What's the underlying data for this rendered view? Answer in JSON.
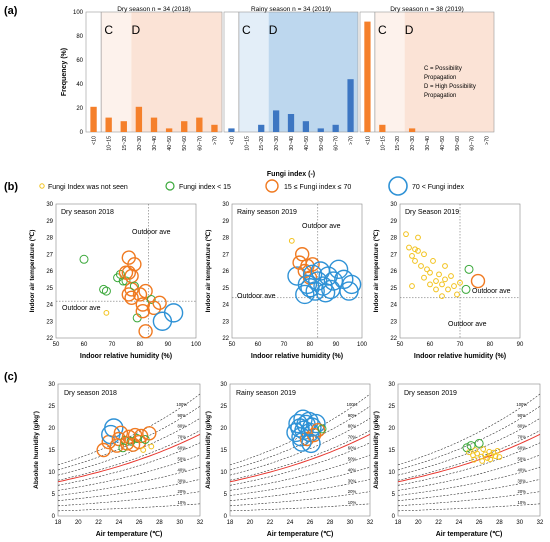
{
  "panel_labels": [
    "(a)",
    "(b)",
    "(c)"
  ],
  "colors": {
    "bar": "#f5802b",
    "dry_shade": "#fbe3d6",
    "dry_shade_light": "#fdf2ec",
    "rainy_shade": "#bdd7ee",
    "rainy_shade_light": "#e3eef8",
    "rainy_bar": "#3d76c2",
    "small_marker": "#f2c21c",
    "lt15_marker": "#3aa83a",
    "mid_marker": "#f07a21",
    "high_marker": "#2f92d6",
    "sat_curve": "#e8372f"
  },
  "legend": {
    "not_seen": "Fungi Index was not seen",
    "lt15": "Fungi index < 15",
    "mid": "15 ≤ Fungi index ≤ 70",
    "gt70": "70 < Fungi index"
  },
  "annotation": {
    "c_label": "C",
    "d_label": "D",
    "note_lines": [
      "C = Possibility",
      "Propagation",
      "D = High Possibility",
      "Propagation"
    ]
  },
  "chart_data": [
    {
      "type": "bar",
      "id": "hist_dry_2018",
      "title": "Dry season n = 34 (2018)",
      "categories": [
        "<10",
        "10~15",
        "15~20",
        "20~30",
        "30~40",
        "40~50",
        "50~60",
        "60~70",
        ">70"
      ],
      "values": [
        21,
        12,
        9,
        21,
        12,
        3,
        9,
        12,
        6
      ],
      "ylabel": "Frequency (%)",
      "ylim": [
        0,
        100
      ],
      "yticks": [
        0,
        20,
        40,
        60,
        80,
        100
      ]
    },
    {
      "type": "bar",
      "id": "hist_rainy_2019",
      "title": "Rainy season n = 34 (2019)",
      "categories": [
        "<10",
        "10~15",
        "15~20",
        "20~30",
        "30~40",
        "40~50",
        "50~60",
        "60~70",
        ">70"
      ],
      "values": [
        3,
        0,
        6,
        18,
        15,
        9,
        3,
        6,
        44
      ],
      "xlabel": "Fungi index (-)",
      "ylim": [
        0,
        100
      ]
    },
    {
      "type": "bar",
      "id": "hist_dry_2019",
      "title": "Dry season n = 38 (2019)",
      "categories": [
        "<10",
        "10~15",
        "15~20",
        "20~30",
        "30~40",
        "40~50",
        "50~60",
        "60~70",
        ">70"
      ],
      "values": [
        92,
        6,
        0,
        3,
        0,
        0,
        0,
        0,
        0
      ],
      "ylim": [
        0,
        100
      ]
    },
    {
      "type": "scatter",
      "id": "scatter_dry_2018",
      "title": "Dry season 2018",
      "xlabel": "Indoor relative humidity (%)",
      "ylabel": "Indoor air temperature (℃)",
      "xlim": [
        50,
        100
      ],
      "ylim": [
        22,
        30
      ],
      "xticks": [
        50,
        60,
        70,
        80,
        90,
        100
      ],
      "yticks": [
        22,
        23,
        24,
        25,
        26,
        27,
        28,
        29,
        30
      ],
      "outdoor_ave": {
        "rh": 83,
        "t": 24.2
      },
      "annotation_text": "Outdoor ave",
      "points": [
        {
          "x": 60,
          "y": 26.7,
          "s": 2
        },
        {
          "x": 67,
          "y": 24.9,
          "s": 2
        },
        {
          "x": 68,
          "y": 24.8,
          "s": 2
        },
        {
          "x": 68,
          "y": 23.5,
          "s": 1
        },
        {
          "x": 72,
          "y": 25.6,
          "s": 2
        },
        {
          "x": 73,
          "y": 25.8,
          "s": 2
        },
        {
          "x": 74,
          "y": 25.4,
          "s": 2
        },
        {
          "x": 75,
          "y": 25.9,
          "s": 3
        },
        {
          "x": 75,
          "y": 25.4,
          "s": 2
        },
        {
          "x": 76,
          "y": 26.8,
          "s": 3
        },
        {
          "x": 76,
          "y": 25.9,
          "s": 3
        },
        {
          "x": 76,
          "y": 24.6,
          "s": 3
        },
        {
          "x": 77,
          "y": 25.7,
          "s": 3
        },
        {
          "x": 77,
          "y": 24.9,
          "s": 3
        },
        {
          "x": 77,
          "y": 24.4,
          "s": 3
        },
        {
          "x": 78,
          "y": 26.4,
          "s": 3
        },
        {
          "x": 78,
          "y": 25.1,
          "s": 2
        },
        {
          "x": 79,
          "y": 23.2,
          "s": 2
        },
        {
          "x": 80,
          "y": 24.6,
          "s": 3
        },
        {
          "x": 81,
          "y": 24.0,
          "s": 3
        },
        {
          "x": 81,
          "y": 23.6,
          "s": 3
        },
        {
          "x": 82,
          "y": 24.8,
          "s": 3
        },
        {
          "x": 82,
          "y": 22.4,
          "s": 3
        },
        {
          "x": 84,
          "y": 24.3,
          "s": 2
        },
        {
          "x": 85,
          "y": 23.8,
          "s": 3
        },
        {
          "x": 87,
          "y": 24.1,
          "s": 3
        },
        {
          "x": 88,
          "y": 23.0,
          "s": 4
        },
        {
          "x": 92,
          "y": 23.5,
          "s": 4
        }
      ]
    },
    {
      "type": "scatter",
      "id": "scatter_rainy_2019",
      "title": "Rainy season 2019",
      "xlabel": "Indoor relative humidity (%)",
      "ylabel": "Indoor air temperature (℃)",
      "xlim": [
        50,
        100
      ],
      "ylim": [
        22,
        30
      ],
      "xticks": [
        50,
        60,
        70,
        80,
        90,
        100
      ],
      "yticks": [
        22,
        23,
        24,
        25,
        26,
        27,
        28,
        29,
        30
      ],
      "outdoor_ave": {
        "rh": 83,
        "t": 24.4
      },
      "annotation_text": "Outdoor ave",
      "points": [
        {
          "x": 73,
          "y": 27.8,
          "s": 1
        },
        {
          "x": 75,
          "y": 25.7,
          "s": 4
        },
        {
          "x": 76,
          "y": 26.5,
          "s": 3
        },
        {
          "x": 77,
          "y": 27.0,
          "s": 3
        },
        {
          "x": 78,
          "y": 24.6,
          "s": 4
        },
        {
          "x": 78,
          "y": 26.0,
          "s": 3
        },
        {
          "x": 79,
          "y": 26.3,
          "s": 3
        },
        {
          "x": 79,
          "y": 25.2,
          "s": 4
        },
        {
          "x": 80,
          "y": 25.6,
          "s": 3
        },
        {
          "x": 80,
          "y": 25.0,
          "s": 4
        },
        {
          "x": 81,
          "y": 26.4,
          "s": 3
        },
        {
          "x": 81,
          "y": 25.8,
          "s": 4
        },
        {
          "x": 82,
          "y": 24.8,
          "s": 4
        },
        {
          "x": 83,
          "y": 25.4,
          "s": 4
        },
        {
          "x": 84,
          "y": 26.0,
          "s": 4
        },
        {
          "x": 85,
          "y": 25.1,
          "s": 4
        },
        {
          "x": 86,
          "y": 24.7,
          "s": 4
        },
        {
          "x": 87,
          "y": 25.7,
          "s": 4
        },
        {
          "x": 88,
          "y": 24.9,
          "s": 4
        },
        {
          "x": 89,
          "y": 25.4,
          "s": 4
        },
        {
          "x": 91,
          "y": 26.1,
          "s": 4
        },
        {
          "x": 93,
          "y": 25.5,
          "s": 4
        },
        {
          "x": 95,
          "y": 24.8,
          "s": 4
        },
        {
          "x": 96,
          "y": 25.2,
          "s": 4
        }
      ]
    },
    {
      "type": "scatter",
      "id": "scatter_dry_2019",
      "title": "Dry Season 2019",
      "xlabel": "Indoor relative humidity (%)",
      "ylabel": "Indoor air temperature (℃)",
      "xlim": [
        50,
        90
      ],
      "ylim": [
        22,
        30
      ],
      "xticks": [
        50,
        60,
        70,
        80,
        90
      ],
      "yticks": [
        22,
        23,
        24,
        25,
        26,
        27,
        28,
        29,
        30
      ],
      "outdoor_ave": {
        "rh": 70,
        "t": 24.4
      },
      "annotation_text": "Outdoor ave",
      "points": [
        {
          "x": 52,
          "y": 28.2,
          "s": 1
        },
        {
          "x": 53,
          "y": 27.4,
          "s": 1
        },
        {
          "x": 54,
          "y": 26.9,
          "s": 1
        },
        {
          "x": 55,
          "y": 27.3,
          "s": 1
        },
        {
          "x": 55,
          "y": 26.6,
          "s": 1
        },
        {
          "x": 56,
          "y": 28.0,
          "s": 1
        },
        {
          "x": 56,
          "y": 27.2,
          "s": 1
        },
        {
          "x": 57,
          "y": 26.3,
          "s": 1
        },
        {
          "x": 58,
          "y": 27.0,
          "s": 1
        },
        {
          "x": 58,
          "y": 25.6,
          "s": 1
        },
        {
          "x": 59,
          "y": 26.1,
          "s": 1
        },
        {
          "x": 60,
          "y": 25.9,
          "s": 1
        },
        {
          "x": 60,
          "y": 25.2,
          "s": 1
        },
        {
          "x": 61,
          "y": 26.6,
          "s": 1
        },
        {
          "x": 62,
          "y": 25.4,
          "s": 1
        },
        {
          "x": 62,
          "y": 24.9,
          "s": 1
        },
        {
          "x": 63,
          "y": 25.8,
          "s": 1
        },
        {
          "x": 64,
          "y": 25.2,
          "s": 1
        },
        {
          "x": 64,
          "y": 24.5,
          "s": 1
        },
        {
          "x": 65,
          "y": 26.3,
          "s": 1
        },
        {
          "x": 65,
          "y": 25.5,
          "s": 1
        },
        {
          "x": 66,
          "y": 24.9,
          "s": 1
        },
        {
          "x": 67,
          "y": 25.7,
          "s": 1
        },
        {
          "x": 68,
          "y": 25.1,
          "s": 1
        },
        {
          "x": 69,
          "y": 24.6,
          "s": 1
        },
        {
          "x": 70,
          "y": 25.3,
          "s": 1
        },
        {
          "x": 72,
          "y": 24.9,
          "s": 2
        },
        {
          "x": 73,
          "y": 26.1,
          "s": 2
        },
        {
          "x": 76,
          "y": 25.4,
          "s": 3
        },
        {
          "x": 54,
          "y": 25.1,
          "s": 1
        }
      ]
    },
    {
      "type": "scatter",
      "id": "psychro_dry_2018",
      "title": "Dry season 2018",
      "xlabel": "Air temperature (℃)",
      "ylabel": "Absolute humidity (g/kg')",
      "xlim": [
        18,
        32
      ],
      "ylim": [
        0,
        30
      ],
      "xticks": [
        18,
        20,
        22,
        24,
        26,
        28,
        30,
        32
      ],
      "yticks": [
        0,
        5,
        10,
        15,
        20,
        25,
        30
      ],
      "rh_labels": [
        "100%",
        "90%",
        "80%",
        "70%",
        "60%",
        "50%",
        "40%",
        "30%",
        "20%",
        "10%"
      ],
      "points": [
        {
          "x": 22.5,
          "y": 15.0,
          "s": 3
        },
        {
          "x": 23.0,
          "y": 16.8,
          "s": 3
        },
        {
          "x": 23.2,
          "y": 18.5,
          "s": 4
        },
        {
          "x": 23.5,
          "y": 20.0,
          "s": 4
        },
        {
          "x": 23.8,
          "y": 16.0,
          "s": 3
        },
        {
          "x": 24.0,
          "y": 17.5,
          "s": 3
        },
        {
          "x": 24.2,
          "y": 18.9,
          "s": 3
        },
        {
          "x": 24.4,
          "y": 15.5,
          "s": 2
        },
        {
          "x": 24.6,
          "y": 17.2,
          "s": 2
        },
        {
          "x": 24.8,
          "y": 16.5,
          "s": 3
        },
        {
          "x": 25.0,
          "y": 18.0,
          "s": 3
        },
        {
          "x": 25.2,
          "y": 17.0,
          "s": 2
        },
        {
          "x": 25.4,
          "y": 16.2,
          "s": 3
        },
        {
          "x": 25.6,
          "y": 18.4,
          "s": 3
        },
        {
          "x": 25.8,
          "y": 17.6,
          "s": 2
        },
        {
          "x": 26.0,
          "y": 16.8,
          "s": 3
        },
        {
          "x": 26.2,
          "y": 18.2,
          "s": 3
        },
        {
          "x": 26.4,
          "y": 15.0,
          "s": 1
        },
        {
          "x": 26.6,
          "y": 17.4,
          "s": 2
        },
        {
          "x": 27.0,
          "y": 18.8,
          "s": 3
        },
        {
          "x": 27.2,
          "y": 15.8,
          "s": 1
        }
      ]
    },
    {
      "type": "scatter",
      "id": "psychro_rainy_2019",
      "title": "Rainy season 2019",
      "xlabel": "Air temperature (℃)",
      "ylabel": "Absolute humidity (g/kg')",
      "xlim": [
        18,
        32
      ],
      "ylim": [
        0,
        30
      ],
      "xticks": [
        18,
        20,
        22,
        24,
        26,
        28,
        30,
        32
      ],
      "yticks": [
        0,
        5,
        10,
        15,
        20,
        25,
        30
      ],
      "rh_labels": [
        "100%",
        "90%",
        "80%",
        "70%",
        "60%",
        "50%",
        "40%",
        "30%",
        "20%",
        "10%"
      ],
      "points": [
        {
          "x": 24.6,
          "y": 19.0,
          "s": 4
        },
        {
          "x": 24.8,
          "y": 21.0,
          "s": 4
        },
        {
          "x": 25.0,
          "y": 20.0,
          "s": 4
        },
        {
          "x": 25.1,
          "y": 18.0,
          "s": 4
        },
        {
          "x": 25.3,
          "y": 22.0,
          "s": 4
        },
        {
          "x": 25.4,
          "y": 19.5,
          "s": 4
        },
        {
          "x": 25.6,
          "y": 20.8,
          "s": 4
        },
        {
          "x": 25.7,
          "y": 17.5,
          "s": 3
        },
        {
          "x": 25.9,
          "y": 21.5,
          "s": 4
        },
        {
          "x": 26.0,
          "y": 19.0,
          "s": 4
        },
        {
          "x": 26.2,
          "y": 20.2,
          "s": 4
        },
        {
          "x": 26.4,
          "y": 18.4,
          "s": 3
        },
        {
          "x": 26.6,
          "y": 21.0,
          "s": 4
        },
        {
          "x": 26.8,
          "y": 19.5,
          "s": 3
        },
        {
          "x": 27.2,
          "y": 19.8,
          "s": 2
        },
        {
          "x": 25.2,
          "y": 16.8,
          "s": 4
        },
        {
          "x": 26.1,
          "y": 16.5,
          "s": 4
        }
      ]
    },
    {
      "type": "scatter",
      "id": "psychro_dry_2019",
      "title": "Dry season 2019",
      "xlabel": "Air temperature (℃)",
      "ylabel": "Absolute humidity (g/kg')",
      "xlim": [
        18,
        32
      ],
      "ylim": [
        0,
        30
      ],
      "xticks": [
        18,
        20,
        22,
        24,
        26,
        28,
        30,
        32
      ],
      "yticks": [
        0,
        5,
        10,
        15,
        20,
        25,
        30
      ],
      "rh_labels": [
        "100%",
        "90%",
        "80%",
        "70%",
        "60%",
        "50%",
        "40%",
        "30%",
        "20%",
        "10%"
      ],
      "points": [
        {
          "x": 24.8,
          "y": 15.5,
          "s": 2
        },
        {
          "x": 25.0,
          "y": 14.5,
          "s": 1
        },
        {
          "x": 25.2,
          "y": 16.0,
          "s": 2
        },
        {
          "x": 25.4,
          "y": 13.8,
          "s": 1
        },
        {
          "x": 25.6,
          "y": 15.0,
          "s": 1
        },
        {
          "x": 25.8,
          "y": 14.2,
          "s": 1
        },
        {
          "x": 26.0,
          "y": 16.5,
          "s": 2
        },
        {
          "x": 26.2,
          "y": 13.5,
          "s": 1
        },
        {
          "x": 26.4,
          "y": 15.2,
          "s": 1
        },
        {
          "x": 26.6,
          "y": 14.0,
          "s": 1
        },
        {
          "x": 26.8,
          "y": 13.2,
          "s": 1
        },
        {
          "x": 27.0,
          "y": 14.6,
          "s": 1
        },
        {
          "x": 27.2,
          "y": 13.8,
          "s": 1
        },
        {
          "x": 27.4,
          "y": 14.4,
          "s": 1
        },
        {
          "x": 27.6,
          "y": 13.6,
          "s": 1
        },
        {
          "x": 27.8,
          "y": 14.8,
          "s": 1
        },
        {
          "x": 28.0,
          "y": 13.4,
          "s": 1
        },
        {
          "x": 25.5,
          "y": 12.8,
          "s": 1
        },
        {
          "x": 26.3,
          "y": 12.5,
          "s": 1
        },
        {
          "x": 27.1,
          "y": 12.9,
          "s": 1
        }
      ]
    }
  ]
}
